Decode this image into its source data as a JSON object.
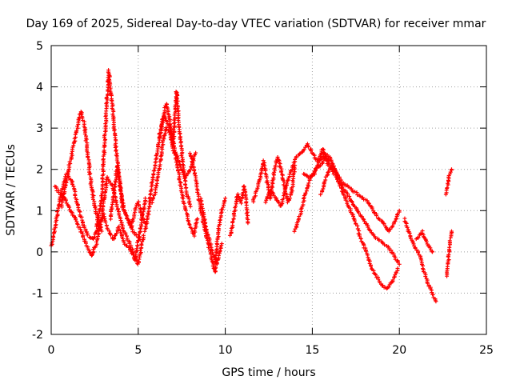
{
  "chart_data": {
    "type": "scatter",
    "title": "Day 169 of 2025, Sidereal Day-to-day VTEC variation (SDTVAR) for receiver mmar",
    "xlabel": "GPS time / hours",
    "ylabel": "SDTVAR / TECUs",
    "xlim": [
      0,
      25
    ],
    "ylim": [
      -2,
      5
    ],
    "xticks": [
      0,
      5,
      10,
      15,
      20,
      25
    ],
    "yticks": [
      -2,
      -1,
      0,
      1,
      2,
      3,
      4,
      5
    ],
    "grid": true,
    "marker": "+",
    "marker_color": "#ff0000",
    "series": [
      {
        "name": "SDTVAR",
        "tracks": [
          {
            "x": [
              0.0,
              0.3,
              0.6,
              0.9,
              1.2,
              1.5,
              1.8,
              2.1,
              2.4,
              2.7,
              3.0,
              3.3,
              3.6,
              3.9,
              4.2,
              4.5,
              4.8,
              5.1,
              5.4
            ],
            "y": [
              0.1,
              0.8,
              1.5,
              1.9,
              1.7,
              1.2,
              0.7,
              0.4,
              0.3,
              0.6,
              0.9,
              0.5,
              0.3,
              0.6,
              0.2,
              0.1,
              -0.2,
              0.5,
              1.3
            ]
          },
          {
            "x": [
              0.2,
              0.5,
              0.8,
              1.1,
              1.4,
              1.7,
              2.0,
              2.3,
              2.6,
              2.9,
              3.2,
              3.5,
              3.8,
              4.1,
              4.4,
              4.7,
              5.0,
              5.3
            ],
            "y": [
              1.6,
              1.4,
              1.3,
              1.0,
              0.8,
              0.5,
              0.2,
              -0.1,
              0.2,
              0.8,
              1.8,
              1.6,
              1.1,
              0.6,
              0.3,
              0.0,
              -0.3,
              0.4
            ]
          },
          {
            "x": [
              0.6,
              0.9,
              1.2,
              1.5,
              1.7,
              1.9,
              2.1,
              2.3,
              2.6,
              2.9
            ],
            "y": [
              1.1,
              1.8,
              2.4,
              3.0,
              3.4,
              3.1,
              2.4,
              1.6,
              0.9,
              0.5
            ]
          },
          {
            "x": [
              2.6,
              2.9,
              3.1,
              3.3,
              3.5,
              3.7,
              3.9,
              4.1,
              4.3,
              4.5,
              4.7,
              4.9,
              5.1
            ],
            "y": [
              0.6,
              1.3,
              2.9,
              4.4,
              3.6,
              2.6,
              1.8,
              1.1,
              0.9,
              0.7,
              0.5,
              0.4,
              0.3
            ]
          },
          {
            "x": [
              3.4,
              3.6,
              3.8,
              4.0,
              4.2,
              4.4,
              4.6,
              4.8,
              5.0,
              5.2,
              5.4
            ],
            "y": [
              0.8,
              1.4,
              2.1,
              1.5,
              1.0,
              0.8,
              0.6,
              1.0,
              1.2,
              0.9,
              0.7
            ]
          },
          {
            "x": [
              5.4,
              5.6,
              5.8,
              6.0,
              6.2,
              6.4,
              6.6,
              6.8,
              7.0,
              7.2,
              7.4,
              7.6,
              7.8,
              8.0
            ],
            "y": [
              0.5,
              1.0,
              1.7,
              2.2,
              2.7,
              3.2,
              3.6,
              3.2,
              2.6,
              3.9,
              2.8,
              2.0,
              1.4,
              1.1
            ]
          },
          {
            "x": [
              5.8,
              6.0,
              6.2,
              6.4,
              6.6,
              6.8,
              7.0,
              7.2,
              7.4,
              7.6,
              7.8,
              8.0,
              8.2,
              8.4
            ],
            "y": [
              1.2,
              1.5,
              2.0,
              2.6,
              3.0,
              2.9,
              2.5,
              2.2,
              1.7,
              1.2,
              0.9,
              0.6,
              0.4,
              0.8
            ]
          },
          {
            "x": [
              6.2,
              6.5,
              6.8,
              7.1,
              7.4,
              7.7,
              8.0,
              8.3
            ],
            "y": [
              2.8,
              3.3,
              3.0,
              2.5,
              2.1,
              1.8,
              2.0,
              2.4
            ]
          },
          {
            "x": [
              8.0,
              8.2,
              8.4,
              8.6,
              8.8,
              9.0,
              9.2,
              9.4,
              9.6,
              9.8,
              10.0
            ],
            "y": [
              2.4,
              2.0,
              1.5,
              1.0,
              0.6,
              0.2,
              -0.1,
              -0.5,
              0.5,
              1.0,
              1.3
            ]
          },
          {
            "x": [
              8.6,
              8.9,
              9.2,
              9.5,
              9.8
            ],
            "y": [
              1.3,
              0.6,
              0.1,
              -0.3,
              0.2
            ]
          },
          {
            "x": [
              10.3,
              10.5,
              10.7,
              10.9,
              11.1,
              11.3
            ],
            "y": [
              0.4,
              0.9,
              1.4,
              1.2,
              1.6,
              0.7
            ]
          },
          {
            "x": [
              11.6,
              11.8,
              12.0,
              12.2,
              12.4,
              12.6,
              12.8,
              13.0,
              13.2,
              13.4,
              13.6,
              13.8,
              14.0
            ],
            "y": [
              1.2,
              1.5,
              1.8,
              2.2,
              1.7,
              1.3,
              1.9,
              2.3,
              2.0,
              1.6,
              1.2,
              1.4,
              2.1
            ]
          },
          {
            "x": [
              12.3,
              12.6,
              12.9,
              13.2,
              13.5,
              13.8,
              14.1,
              14.4,
              14.7,
              15.0,
              15.3,
              15.6,
              15.9
            ],
            "y": [
              1.2,
              1.5,
              1.3,
              1.1,
              1.6,
              2.0,
              2.3,
              2.4,
              2.6,
              2.4,
              2.2,
              2.5,
              2.1
            ]
          },
          {
            "x": [
              14.0,
              14.3,
              14.6,
              14.9,
              15.2,
              15.5,
              15.8,
              16.1,
              16.4,
              16.7,
              17.0,
              17.3,
              17.6,
              17.9,
              18.2,
              18.5,
              18.8,
              19.1,
              19.4,
              19.7,
              20.0
            ],
            "y": [
              0.5,
              0.9,
              1.4,
              1.8,
              2.0,
              2.1,
              2.3,
              2.0,
              1.8,
              1.6,
              1.4,
              1.2,
              1.0,
              0.8,
              0.6,
              0.4,
              0.3,
              0.2,
              0.1,
              -0.1,
              -0.3
            ]
          },
          {
            "x": [
              14.5,
              14.8,
              15.1,
              15.4,
              15.7,
              16.0,
              16.3,
              16.6,
              16.9,
              17.2,
              17.5,
              17.8,
              18.1,
              18.4,
              18.7,
              19.0,
              19.3,
              19.6,
              19.9
            ],
            "y": [
              1.9,
              1.8,
              1.9,
              2.2,
              2.4,
              2.3,
              2.0,
              1.6,
              1.3,
              1.0,
              0.7,
              0.3,
              0.0,
              -0.4,
              -0.6,
              -0.8,
              -0.9,
              -0.7,
              -0.4
            ]
          },
          {
            "x": [
              15.5,
              15.8,
              16.1,
              16.4,
              16.7,
              17.0,
              17.3,
              17.6,
              17.9,
              18.2,
              18.5,
              18.8,
              19.1,
              19.4,
              19.7,
              20.0
            ],
            "y": [
              1.4,
              1.8,
              2.1,
              1.9,
              1.7,
              1.6,
              1.5,
              1.4,
              1.3,
              1.2,
              1.0,
              0.8,
              0.7,
              0.5,
              0.7,
              1.0
            ]
          },
          {
            "x": [
              20.3,
              20.6,
              20.9,
              21.2,
              21.5,
              21.8,
              22.1
            ],
            "y": [
              0.8,
              0.4,
              0.1,
              -0.1,
              -0.6,
              -0.9,
              -1.2
            ]
          },
          {
            "x": [
              21.0,
              21.3,
              21.6,
              21.9
            ],
            "y": [
              0.3,
              0.5,
              0.2,
              0.0
            ]
          },
          {
            "x": [
              22.7,
              22.8,
              22.9,
              23.0
            ],
            "y": [
              -0.6,
              -0.3,
              0.2,
              0.5
            ]
          },
          {
            "x": [
              22.7,
              22.8,
              22.9,
              23.0
            ],
            "y": [
              1.4,
              1.7,
              1.9,
              2.0
            ]
          }
        ]
      }
    ]
  }
}
